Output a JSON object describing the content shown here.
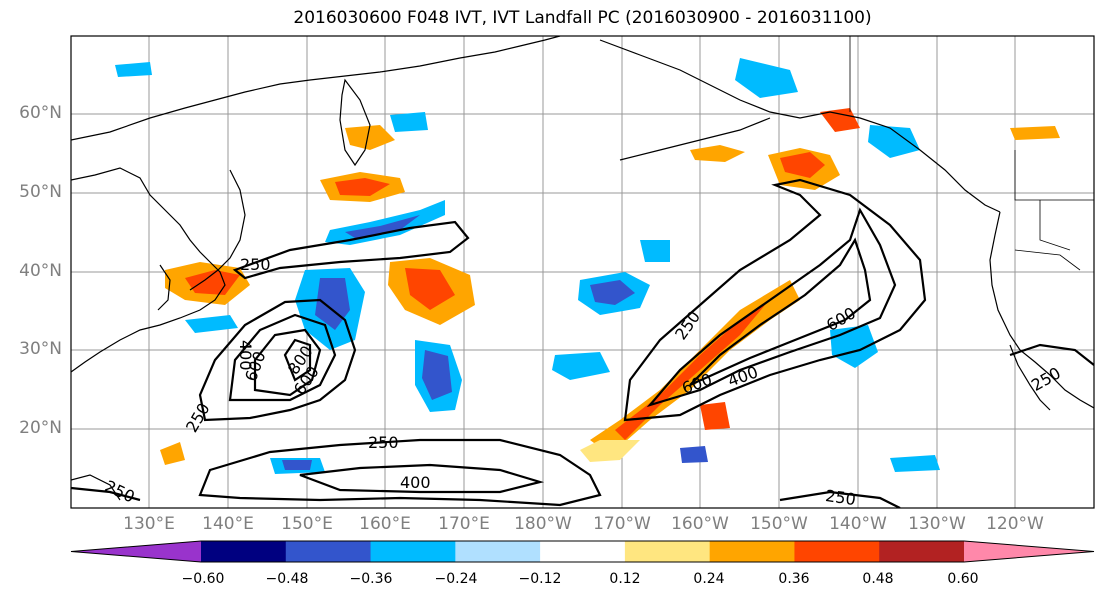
{
  "title": "2016030600 F048 IVT, IVT Landfall PC (2016030900 - 2016031100)",
  "lat_labels": [
    "60°N",
    "50°N",
    "40°N",
    "30°N",
    "20°N"
  ],
  "lon_labels": [
    "130°E",
    "140°E",
    "150°E",
    "160°E",
    "170°E",
    "180°W",
    "170°W",
    "160°W",
    "150°W",
    "140°W",
    "130°W",
    "120°W"
  ],
  "colorbar": {
    "ticks": [
      "−0.60",
      "−0.48",
      "−0.36",
      "−0.24",
      "−0.12",
      "0.12",
      "0.24",
      "0.36",
      "0.48",
      "0.60"
    ],
    "colors": [
      "#9933cc",
      "#000080",
      "#3355cc",
      "#00bbff",
      "#b0e0ff",
      "#ffffff",
      "#ffe680",
      "#ffa500",
      "#ff4500",
      "#b22222",
      "#ff88aa"
    ]
  },
  "contour_labels": {
    "c250_japan": "250",
    "c400_west": "400",
    "c600_west": "600",
    "c800": "800",
    "c600_west_b": "600",
    "c250_sw": "250",
    "c250_south": "250",
    "c400_south": "400",
    "c250_left": "250",
    "c250_east": "250",
    "c600_east": "600",
    "c400_east": "400",
    "c600_east_b": "600",
    "c250_bottom": "250",
    "c250_right": "250"
  }
}
